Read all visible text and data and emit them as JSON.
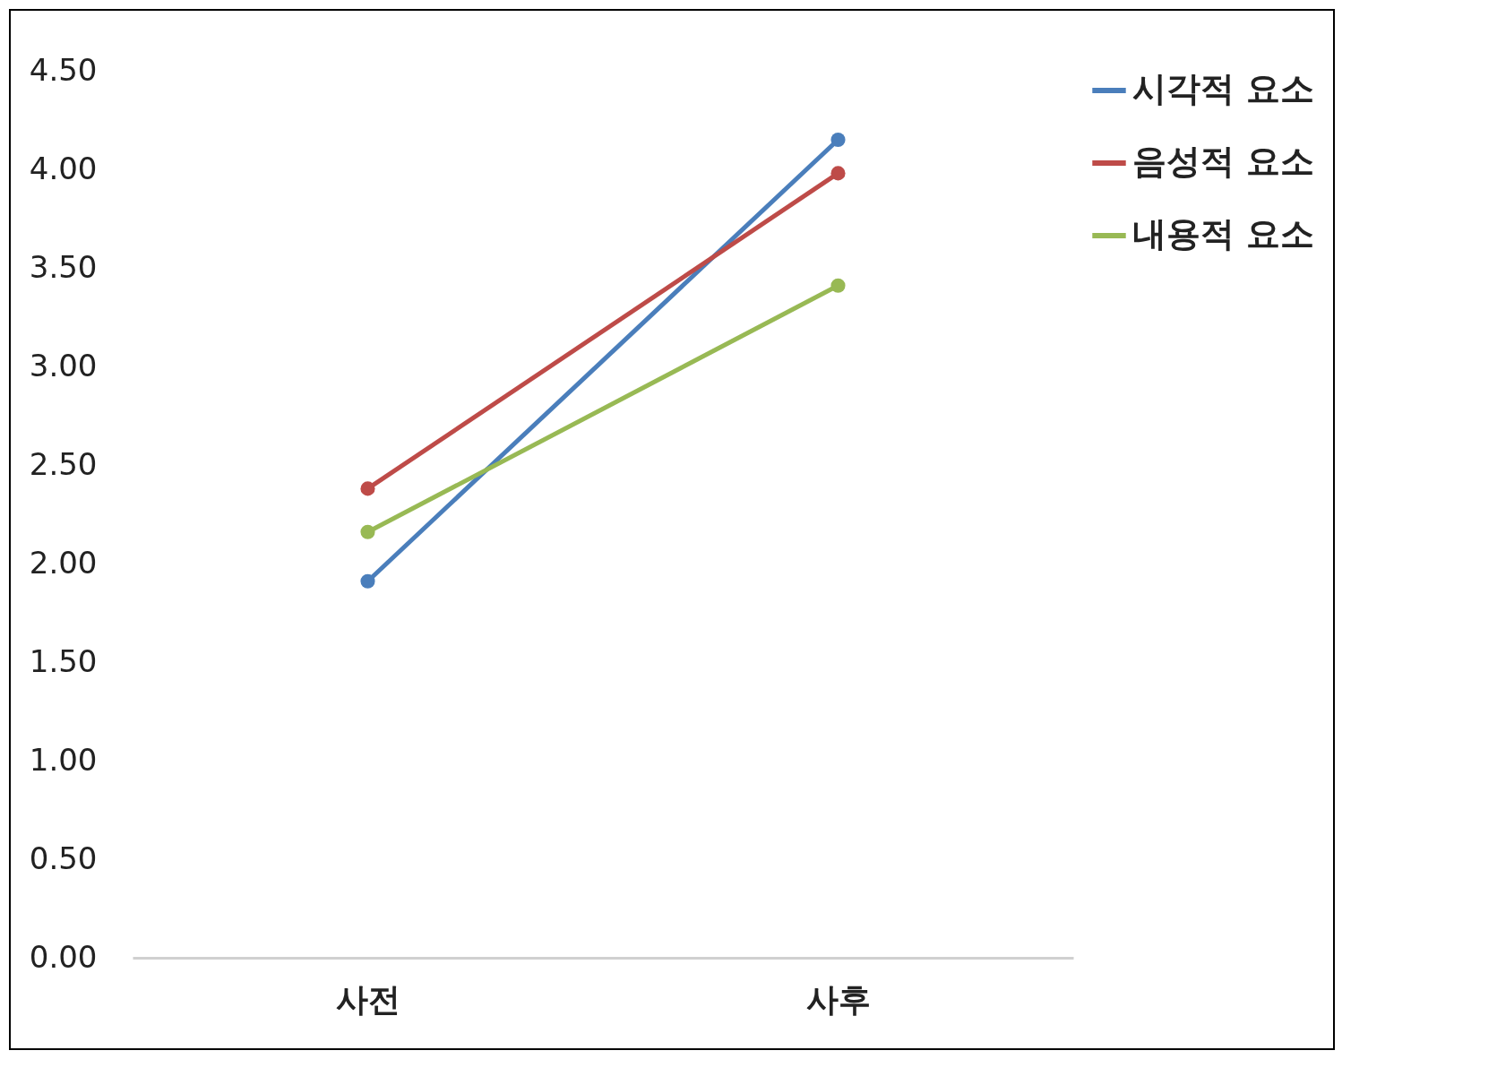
{
  "chart_data": {
    "type": "line",
    "categories": [
      "사전",
      "사후"
    ],
    "series": [
      {
        "name": "시각적 요소",
        "color": "#4a7ebb",
        "values": [
          1.91,
          4.15
        ]
      },
      {
        "name": "음성적 요소",
        "color": "#be4b48",
        "values": [
          2.38,
          3.98
        ]
      },
      {
        "name": "내용적 요소",
        "color": "#98b954",
        "values": [
          2.16,
          3.41
        ]
      }
    ],
    "ylim": [
      0,
      4.5
    ],
    "yticks": [
      {
        "value": 0,
        "label": "0.00"
      },
      {
        "value": 0.5,
        "label": "0.50"
      },
      {
        "value": 1,
        "label": "1.00"
      },
      {
        "value": 1.5,
        "label": "1.50"
      },
      {
        "value": 2,
        "label": "2.00"
      },
      {
        "value": 2.5,
        "label": "2.50"
      },
      {
        "value": 3,
        "label": "3.00"
      },
      {
        "value": 3.5,
        "label": "3.50"
      },
      {
        "value": 4,
        "label": "4.00"
      },
      {
        "value": 4.5,
        "label": "4.50"
      }
    ],
    "grid": false,
    "legend": "right",
    "marker": "circle",
    "line_style": "solid"
  }
}
